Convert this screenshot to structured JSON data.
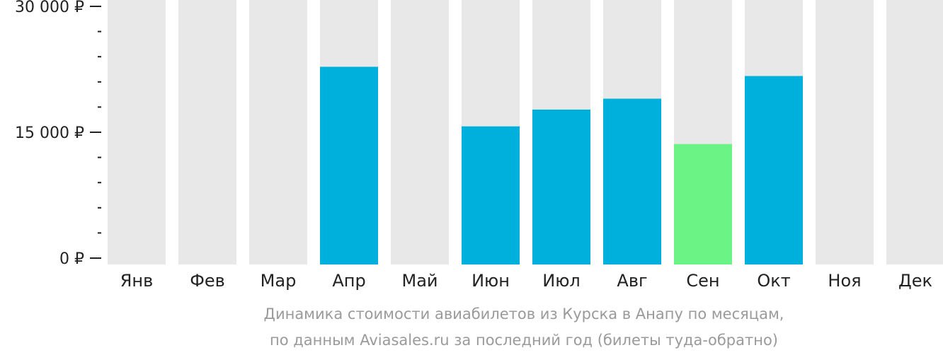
{
  "chart_data": {
    "type": "bar",
    "categories": [
      "Янв",
      "Фев",
      "Мар",
      "Апр",
      "Май",
      "Июн",
      "Июл",
      "Авг",
      "Сен",
      "Окт",
      "Ноя",
      "Дек"
    ],
    "values": [
      null,
      null,
      null,
      22800,
      null,
      15700,
      17700,
      19000,
      13600,
      21700,
      null,
      null
    ],
    "highlight_index": 8,
    "ylim": [
      0,
      30000
    ],
    "yticks": [
      {
        "value": 0,
        "label": "0 ₽"
      },
      {
        "value": 15000,
        "label": "15 000 ₽"
      },
      {
        "value": 30000,
        "label": "30 000 ₽"
      }
    ],
    "minor_tick_step": 3000,
    "caption_lines": [
      "Динамика стоимости авиабилетов из Курска в Анапу по месяцам,",
      "по данным Aviasales.ru за последний год (билеты туда-обратно)"
    ],
    "colors": {
      "bar": "#00b0dc",
      "highlight": "#6cf386",
      "background_bar": "#e8e8e8",
      "axis": "#222222",
      "caption": "#9a9a9a"
    }
  }
}
